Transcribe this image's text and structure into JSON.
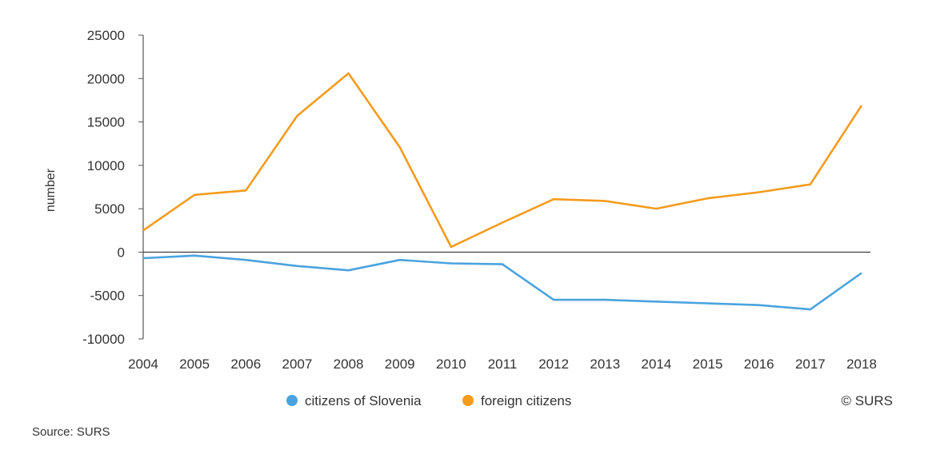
{
  "chart_data": {
    "type": "line",
    "categories": [
      "2004",
      "2005",
      "2006",
      "2007",
      "2008",
      "2009",
      "2010",
      "2011",
      "2012",
      "2013",
      "2014",
      "2015",
      "2016",
      "2017",
      "2018"
    ],
    "series": [
      {
        "name": "citizens of Slovenia",
        "color": "#4aa3df",
        "values": [
          -700,
          -400,
          -900,
          -1600,
          -2100,
          -900,
          -1300,
          -1400,
          -5500,
          -5500,
          -5700,
          -5900,
          -6100,
          -6600,
          -2400
        ]
      },
      {
        "name": "foreign citizens",
        "color": "#f59b1c",
        "values": [
          2500,
          6600,
          7100,
          15700,
          20600,
          12100,
          600,
          3400,
          6100,
          5900,
          5000,
          6200,
          6900,
          7800,
          16900
        ]
      }
    ],
    "ylabel": "number",
    "ylim": [
      -10000,
      25000
    ],
    "yticks": [
      -10000,
      -5000,
      0,
      5000,
      10000,
      15000,
      20000,
      25000
    ],
    "ytick_labels": [
      "-10000",
      "-5000",
      "0",
      "5000",
      "10000",
      "15000",
      "20000",
      "25000"
    ],
    "legend_position": "bottom",
    "copyright": "© SURS"
  },
  "source": "Source: SURS"
}
